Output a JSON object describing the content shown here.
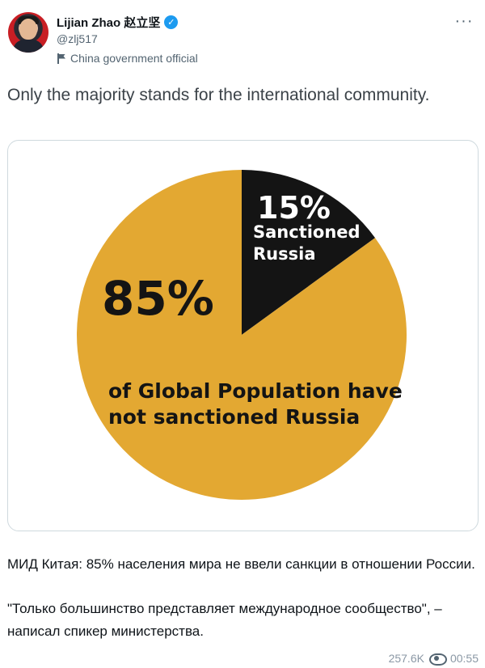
{
  "author": {
    "display_name": "Lijian Zhao 赵立坚",
    "handle": "@zlj517",
    "label": "China government official",
    "verified_icon": "verified-badge-icon",
    "accent": "#1d9bf0"
  },
  "tweet": {
    "text": "Only the majority stands for the international community."
  },
  "chart_data": {
    "type": "pie",
    "slices": [
      {
        "label": "Sanctioned Russia",
        "value": 15,
        "display": "15%",
        "color": "#141414"
      },
      {
        "label": "of Global Population have not sanctioned Russia",
        "value": 85,
        "display": "85%",
        "color": "#e3a832"
      }
    ],
    "annotations": {
      "big_percent": "85%",
      "big_text_line1": "of Global Population have",
      "big_text_line2": "not sanctioned Russia",
      "small_percent": "15%",
      "small_text_line1": "Sanctioned",
      "small_text_line2": "Russia"
    }
  },
  "caption": {
    "line1": "МИД Китая: 85% населения мира не ввели санкции в отношении России.",
    "line2": "\"Только большинство представляет международное сообщество\", – написал спикер министерства."
  },
  "meta": {
    "views": "257.6K",
    "time": "00:55"
  }
}
